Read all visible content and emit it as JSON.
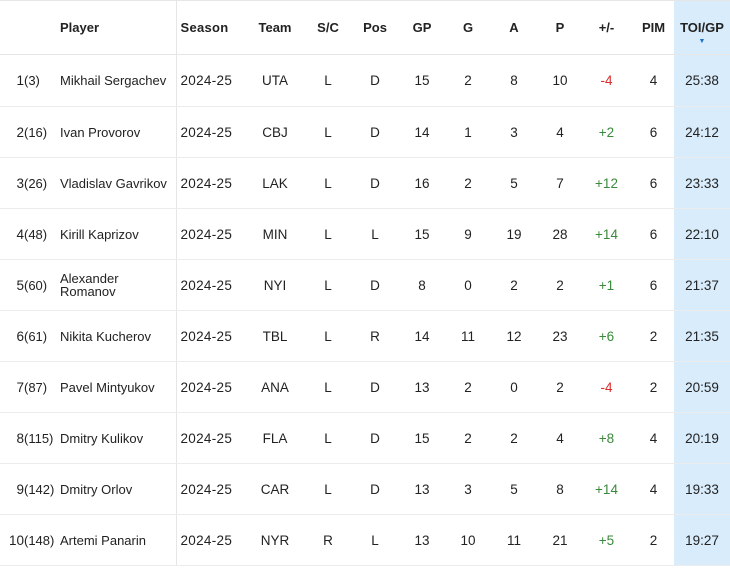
{
  "headers": {
    "player": "Player",
    "season": "Season",
    "team": "Team",
    "sc": "S/C",
    "pos": "Pos",
    "gp": "GP",
    "g": "G",
    "a": "A",
    "p": "P",
    "pm": "+/-",
    "pim": "PIM",
    "toi": "TOI/GP"
  },
  "sort_icon": "sort-descending-icon",
  "rows": [
    {
      "rank": "1",
      "pick": "(3)",
      "player": "Mikhail Sergachev",
      "season": "2024-25",
      "team": "UTA",
      "sc": "L",
      "pos": "D",
      "gp": "15",
      "g": "2",
      "a": "8",
      "p": "10",
      "pm": "-4",
      "pim": "4",
      "toi": "25:38"
    },
    {
      "rank": "2",
      "pick": "(16)",
      "player": "Ivan Provorov",
      "season": "2024-25",
      "team": "CBJ",
      "sc": "L",
      "pos": "D",
      "gp": "14",
      "g": "1",
      "a": "3",
      "p": "4",
      "pm": "+2",
      "pim": "6",
      "toi": "24:12"
    },
    {
      "rank": "3",
      "pick": "(26)",
      "player": "Vladislav Gavrikov",
      "season": "2024-25",
      "team": "LAK",
      "sc": "L",
      "pos": "D",
      "gp": "16",
      "g": "2",
      "a": "5",
      "p": "7",
      "pm": "+12",
      "pim": "6",
      "toi": "23:33"
    },
    {
      "rank": "4",
      "pick": "(48)",
      "player": "Kirill Kaprizov",
      "season": "2024-25",
      "team": "MIN",
      "sc": "L",
      "pos": "L",
      "gp": "15",
      "g": "9",
      "a": "19",
      "p": "28",
      "pm": "+14",
      "pim": "6",
      "toi": "22:10"
    },
    {
      "rank": "5",
      "pick": "(60)",
      "player": "Alexander Romanov",
      "season": "2024-25",
      "team": "NYI",
      "sc": "L",
      "pos": "D",
      "gp": "8",
      "g": "0",
      "a": "2",
      "p": "2",
      "pm": "+1",
      "pim": "6",
      "toi": "21:37"
    },
    {
      "rank": "6",
      "pick": "(61)",
      "player": "Nikita Kucherov",
      "season": "2024-25",
      "team": "TBL",
      "sc": "L",
      "pos": "R",
      "gp": "14",
      "g": "11",
      "a": "12",
      "p": "23",
      "pm": "+6",
      "pim": "2",
      "toi": "21:35"
    },
    {
      "rank": "7",
      "pick": "(87)",
      "player": "Pavel Mintyukov",
      "season": "2024-25",
      "team": "ANA",
      "sc": "L",
      "pos": "D",
      "gp": "13",
      "g": "2",
      "a": "0",
      "p": "2",
      "pm": "-4",
      "pim": "2",
      "toi": "20:59"
    },
    {
      "rank": "8",
      "pick": "(115)",
      "player": "Dmitry Kulikov",
      "season": "2024-25",
      "team": "FLA",
      "sc": "L",
      "pos": "D",
      "gp": "15",
      "g": "2",
      "a": "2",
      "p": "4",
      "pm": "+8",
      "pim": "4",
      "toi": "20:19"
    },
    {
      "rank": "9",
      "pick": "(142)",
      "player": "Dmitry Orlov",
      "season": "2024-25",
      "team": "CAR",
      "sc": "L",
      "pos": "D",
      "gp": "13",
      "g": "3",
      "a": "5",
      "p": "8",
      "pm": "+14",
      "pim": "4",
      "toi": "19:33"
    },
    {
      "rank": "10",
      "pick": "(148)",
      "player": "Artemi Panarin",
      "season": "2024-25",
      "team": "NYR",
      "sc": "R",
      "pos": "L",
      "gp": "13",
      "g": "10",
      "a": "11",
      "p": "21",
      "pm": "+5",
      "pim": "2",
      "toi": "19:27"
    }
  ],
  "colors": {
    "negative": "#d62c2c",
    "positive": "#3a8a3a",
    "sorted_column_bg": "#d9ecfb",
    "sort_arrow": "#1a73c9"
  }
}
